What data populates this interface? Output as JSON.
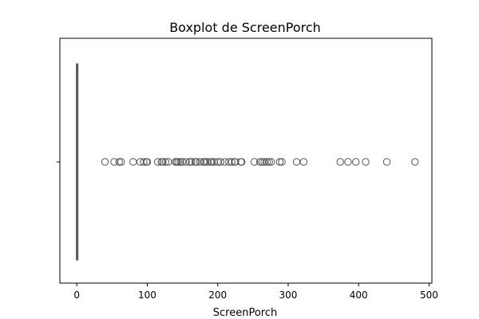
{
  "chart_data": {
    "type": "boxplot",
    "orientation": "horizontal",
    "title": "Boxplot de ScreenPorch",
    "xlabel": "ScreenPorch",
    "ylabel": "",
    "xlim": [
      -24,
      504
    ],
    "xticks": [
      0,
      100,
      200,
      300,
      400,
      500
    ],
    "xtick_labels": [
      "0",
      "100",
      "200",
      "300",
      "400",
      "500"
    ],
    "box": {
      "min": 0,
      "q1": 0,
      "median": 0,
      "q3": 0,
      "whisker_low": 0,
      "whisker_high": 0
    },
    "outliers": [
      40,
      53,
      60,
      63,
      80,
      90,
      95,
      99,
      100,
      115,
      120,
      122,
      126,
      130,
      140,
      142,
      144,
      147,
      150,
      155,
      160,
      163,
      168,
      170,
      175,
      180,
      182,
      185,
      190,
      192,
      195,
      200,
      204,
      210,
      216,
      220,
      224,
      225,
      233,
      234,
      252,
      260,
      263,
      266,
      270,
      273,
      276,
      288,
      291,
      312,
      322,
      374,
      385,
      396,
      410,
      440,
      480
    ],
    "grid": false,
    "colors": {
      "box": "#4c72b0",
      "outlier_edge": "#555555",
      "median": "#555555",
      "frame": "#000000"
    }
  }
}
